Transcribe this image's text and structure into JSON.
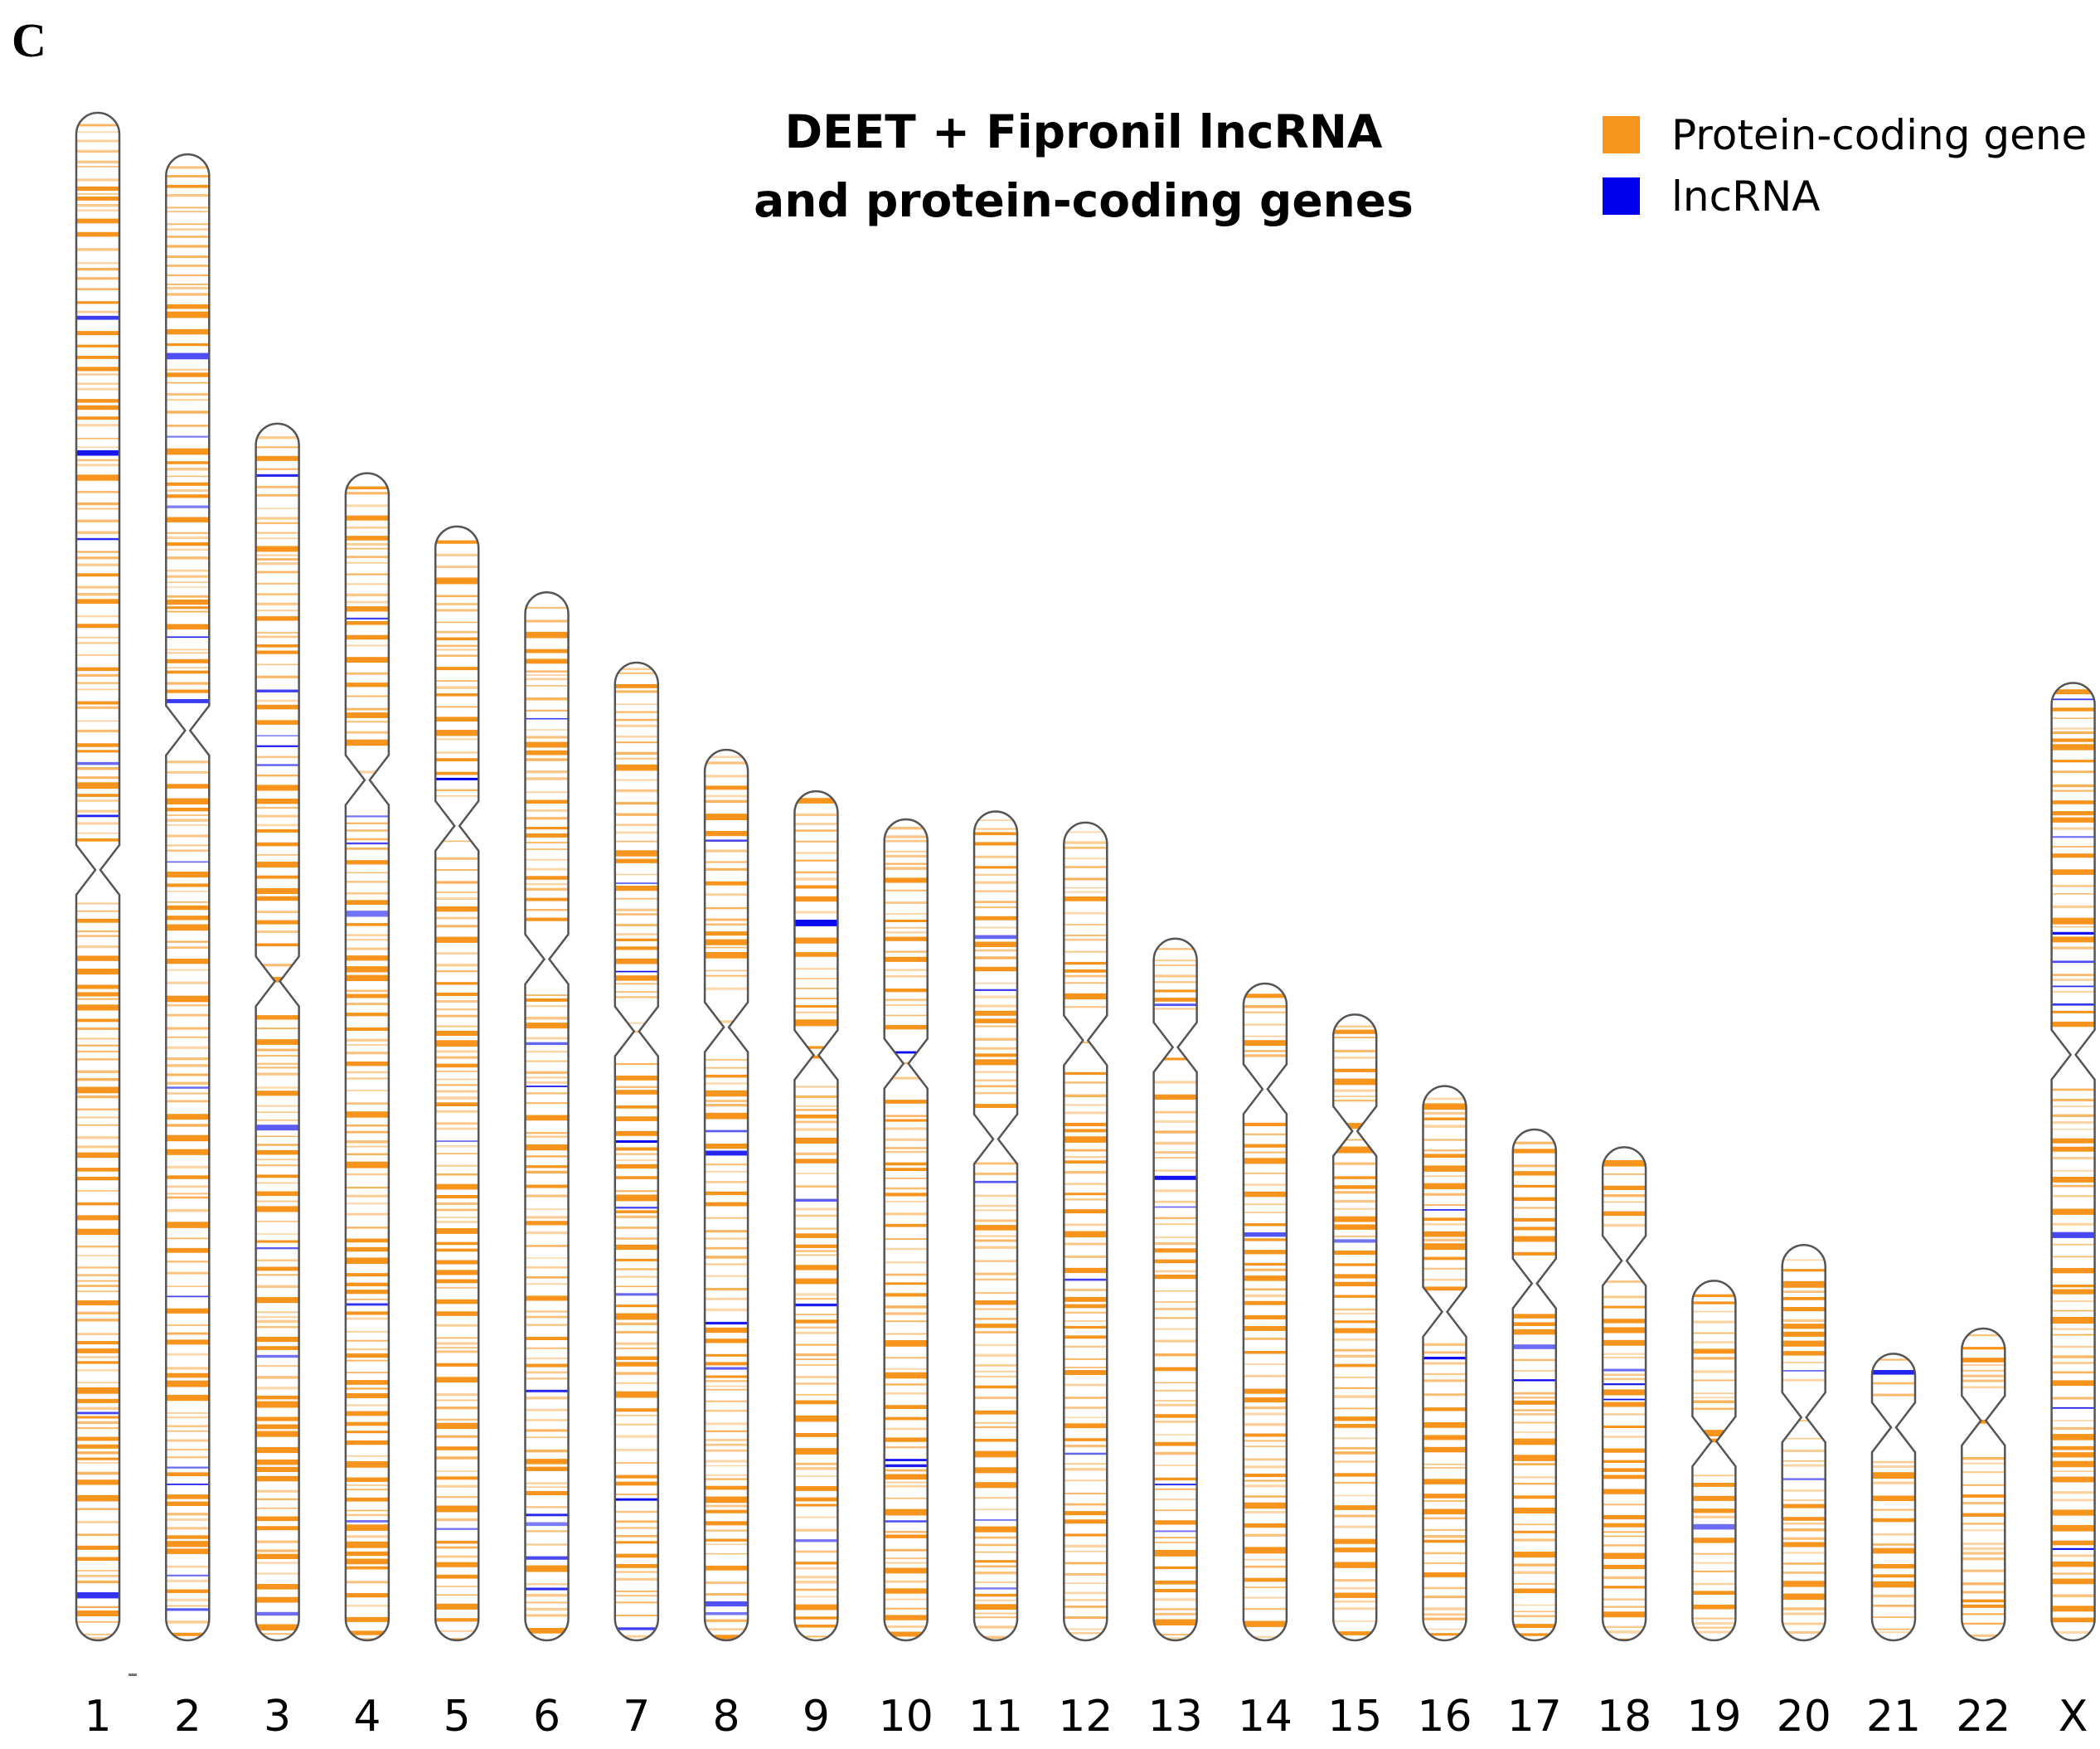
{
  "panel_letter": "C",
  "title": {
    "line1": "DEET + Fipronil lncRNA",
    "line2": "and protein-coding genes"
  },
  "legend": {
    "items": [
      {
        "label": "Protein-coding gene",
        "color": "#F7941D"
      },
      {
        "label": "lncRNA",
        "color": "#0000EE"
      }
    ]
  },
  "colors": {
    "protein_coding": "#F7941D",
    "lncrna": "#0000EE",
    "outline": "#555555"
  },
  "chromosomes": [
    {
      "name": "1",
      "length_mb": 248.96,
      "centromere_mb": 123.4
    },
    {
      "name": "2",
      "length_mb": 242.19,
      "centromere_mb": 93.9
    },
    {
      "name": "3",
      "length_mb": 198.3,
      "centromere_mb": 90.9
    },
    {
      "name": "4",
      "length_mb": 190.21,
      "centromere_mb": 50.0
    },
    {
      "name": "5",
      "length_mb": 181.54,
      "centromere_mb": 48.8
    },
    {
      "name": "6",
      "length_mb": 170.81,
      "centromere_mb": 59.8
    },
    {
      "name": "7",
      "length_mb": 159.35,
      "centromere_mb": 60.1
    },
    {
      "name": "8",
      "length_mb": 145.14,
      "centromere_mb": 45.2
    },
    {
      "name": "9",
      "length_mb": 138.39,
      "centromere_mb": 43.0
    },
    {
      "name": "10",
      "length_mb": 133.8,
      "centromere_mb": 39.8
    },
    {
      "name": "11",
      "length_mb": 135.09,
      "centromere_mb": 53.4
    },
    {
      "name": "12",
      "length_mb": 133.28,
      "centromere_mb": 35.5
    },
    {
      "name": "13",
      "length_mb": 114.36,
      "centromere_mb": 17.7
    },
    {
      "name": "14",
      "length_mb": 107.04,
      "centromere_mb": 17.2
    },
    {
      "name": "15",
      "length_mb": 101.99,
      "centromere_mb": 19.0
    },
    {
      "name": "16",
      "length_mb": 90.34,
      "centromere_mb": 36.8
    },
    {
      "name": "17",
      "length_mb": 83.26,
      "centromere_mb": 25.1
    },
    {
      "name": "18",
      "length_mb": 80.37,
      "centromere_mb": 18.5
    },
    {
      "name": "19",
      "length_mb": 58.62,
      "centromere_mb": 26.2
    },
    {
      "name": "20",
      "length_mb": 64.44,
      "centromere_mb": 28.1
    },
    {
      "name": "21",
      "length_mb": 46.71,
      "centromere_mb": 12.0
    },
    {
      "name": "22",
      "length_mb": 50.82,
      "centromere_mb": 15.0
    },
    {
      "name": "X",
      "length_mb": 156.04,
      "centromere_mb": 60.6
    }
  ]
}
